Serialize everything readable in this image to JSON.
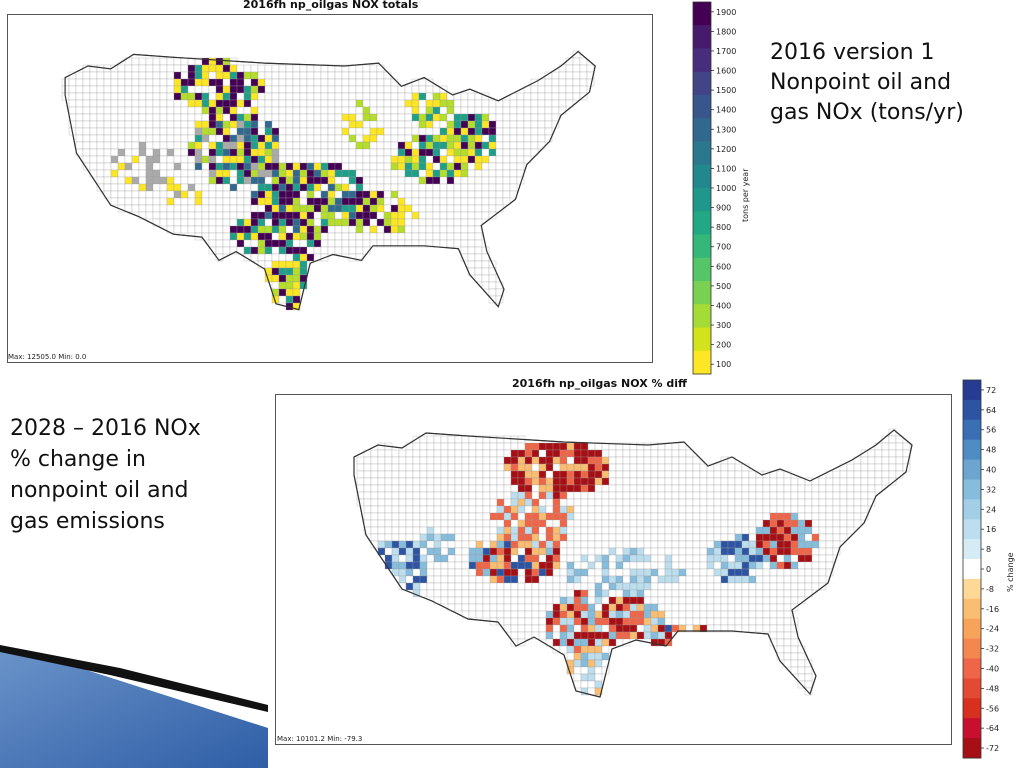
{
  "top_map": {
    "title": "2016fh np_oilgas NOX totals",
    "maxmin": "Max: 12505.0  Min: 0.0",
    "colorbar": {
      "label": "tons per year",
      "ticks": [
        "100",
        "200",
        "300",
        "400",
        "500",
        "600",
        "700",
        "800",
        "900",
        "1000",
        "1100",
        "1200",
        "1300",
        "1400",
        "1500",
        "1600",
        "1700",
        "1800",
        "1900"
      ],
      "colors": [
        "#fde725",
        "#d2e21b",
        "#a5db36",
        "#7ad151",
        "#54c568",
        "#35b779",
        "#22a884",
        "#1f988b",
        "#23888e",
        "#2a788e",
        "#31688e",
        "#39568c",
        "#414487",
        "#472d7b",
        "#481a6c",
        "#440154"
      ]
    }
  },
  "bottom_map": {
    "title": "2016fh np_oilgas NOX % diff",
    "maxmin": "Max: 10101.2  Min: -79.3",
    "colorbar": {
      "label": "% change",
      "ticks": [
        "72",
        "64",
        "56",
        "48",
        "40",
        "32",
        "24",
        "16",
        "8",
        "0",
        "-8",
        "-16",
        "-24",
        "-32",
        "-40",
        "-48",
        "-56",
        "-64",
        "-72"
      ],
      "colors": [
        "#a50f15",
        "#c8102e",
        "#d7301f",
        "#e34a33",
        "#ef6548",
        "#f4874f",
        "#f7a35a",
        "#f9be72",
        "#fdd896",
        "#ffffff",
        "#d6ecf4",
        "#bcdeee",
        "#a2cfe6",
        "#86bcdc",
        "#6ba5d0",
        "#4f8cc3",
        "#3b6fb3",
        "#2d54a2",
        "#263c92"
      ]
    }
  },
  "text_top": "2016 version 1\nNonpoint oil and\ngas NOx (tons/yr)",
  "text_bottom": "2028 – 2016 NOx\n% change in\nnonpoint oil and\ngas emissions"
}
